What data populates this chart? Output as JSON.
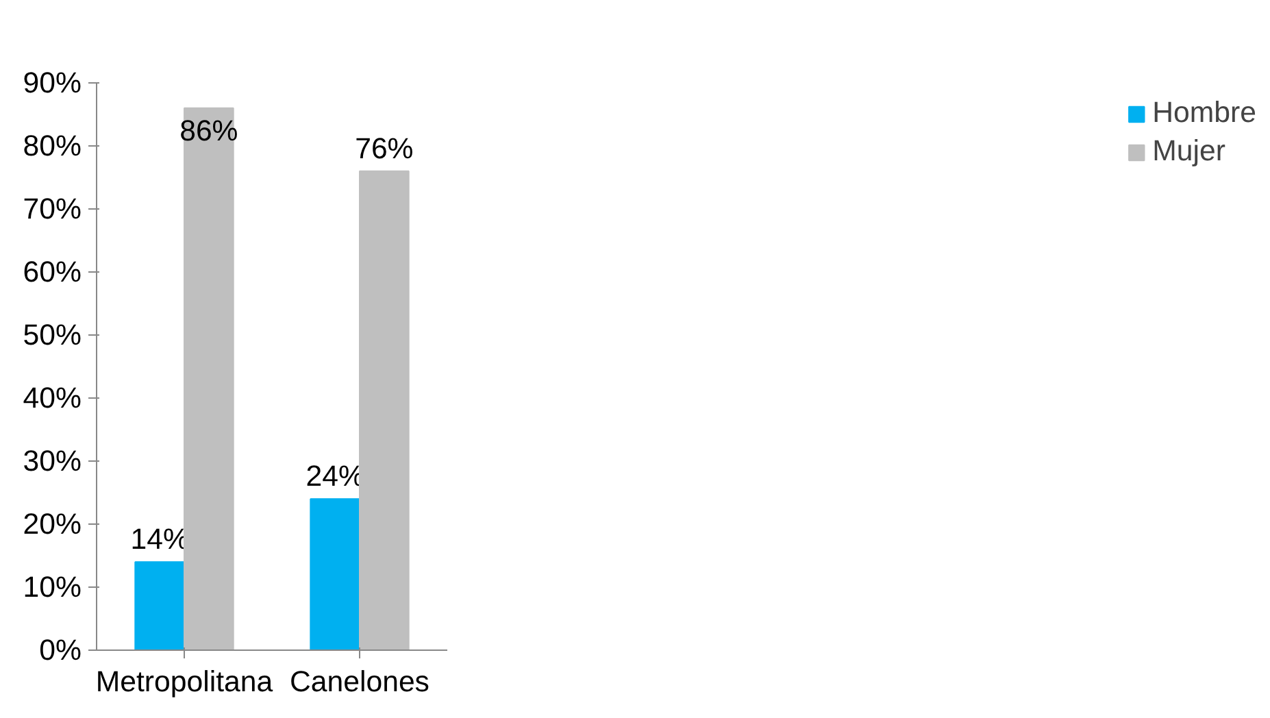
{
  "chart_data": {
    "type": "bar",
    "categories": [
      "Metropolitana",
      "Canelones"
    ],
    "series": [
      {
        "name": "Hombre",
        "color": "#00b0f0",
        "values": [
          14,
          24
        ],
        "value_labels": [
          "14%",
          "24%"
        ]
      },
      {
        "name": "Mujer",
        "color": "#bfbfbf",
        "values": [
          86,
          76
        ],
        "value_labels": [
          "86%",
          "76%"
        ]
      }
    ],
    "ylim": [
      0,
      90
    ],
    "yticks": [
      {
        "value": 0,
        "label": "0%"
      },
      {
        "value": 10,
        "label": "10%"
      },
      {
        "value": 20,
        "label": "20%"
      },
      {
        "value": 30,
        "label": "30%"
      },
      {
        "value": 40,
        "label": "40%"
      },
      {
        "value": 50,
        "label": "50%"
      },
      {
        "value": 60,
        "label": "60%"
      },
      {
        "value": 70,
        "label": "70%"
      },
      {
        "value": 80,
        "label": "80%"
      },
      {
        "value": 90,
        "label": "90%"
      }
    ],
    "grid": false,
    "legend": "right"
  }
}
